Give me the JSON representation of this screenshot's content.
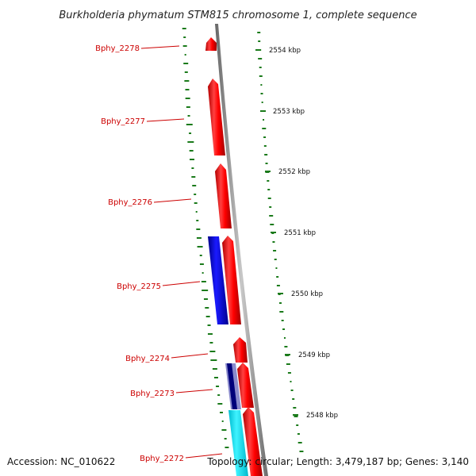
{
  "title": "Burkholderia phymatum STM815 chromosome 1, complete sequence",
  "footer": {
    "accession": "Accession: NC_010622",
    "topology": "Topology: circular; Length: 3,479,187 bp; Genes: 3,140"
  },
  "colors": {
    "forward_gene": "#ff0000",
    "reverse_gene": "#0000cc",
    "rna_gene": "#00e5ee",
    "dark_gene": "#00007a",
    "label": "#cc0000",
    "gc_ticks": "#1a7a1a",
    "backbone": "#8a8a8a"
  },
  "positions": [
    {
      "label": "2554 kbp"
    },
    {
      "label": "2553 kbp"
    },
    {
      "label": "2552 kbp"
    },
    {
      "label": "2551 kbp"
    },
    {
      "label": "2550 kbp"
    },
    {
      "label": "2549 kbp"
    },
    {
      "label": "2548 kbp"
    }
  ],
  "genes": [
    {
      "label": "Bphy_2278"
    },
    {
      "label": "Bphy_2277"
    },
    {
      "label": "Bphy_2276"
    },
    {
      "label": "Bphy_2275"
    },
    {
      "label": "Bphy_2274"
    },
    {
      "label": "Bphy_2273"
    },
    {
      "label": "Bphy_2272"
    }
  ]
}
